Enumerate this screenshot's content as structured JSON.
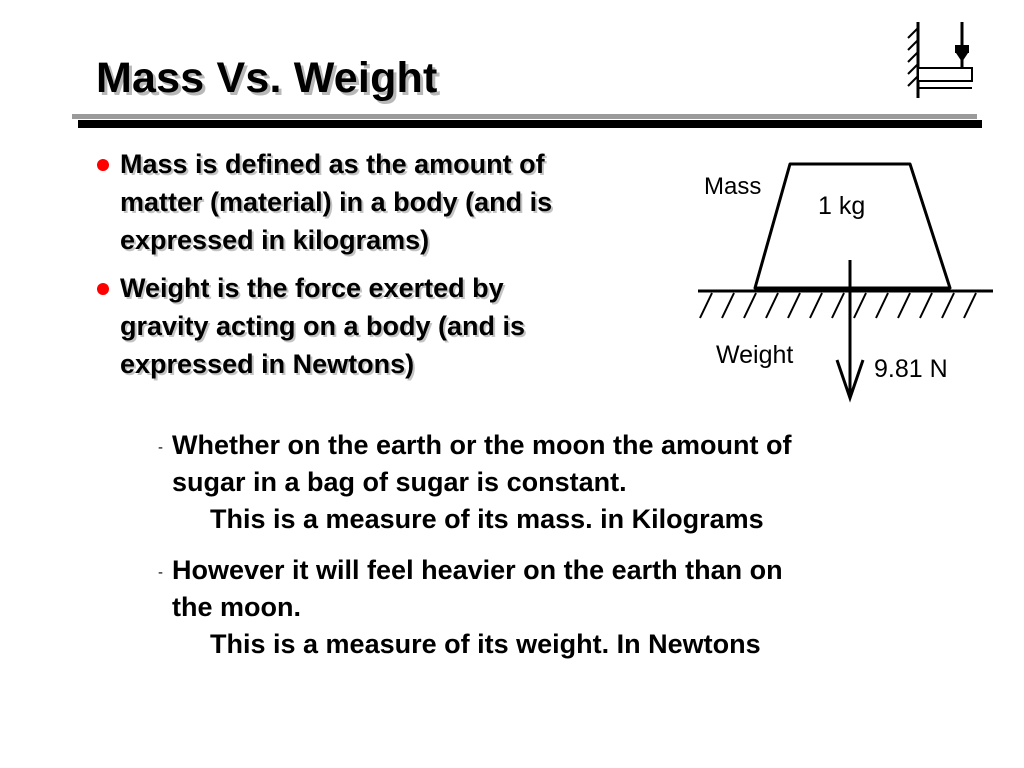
{
  "slide": {
    "title": "Mass Vs. Weight"
  },
  "bullets": [
    {
      "lines": [
        "Mass is defined as the amount of",
        "matter (material) in a body (and is",
        "expressed in kilograms)"
      ]
    },
    {
      "lines": [
        "Weight is the force exerted by",
        "gravity acting on a body (and is",
        "expressed in Newtons)"
      ]
    }
  ],
  "diagram": {
    "mass_label": "Mass",
    "mass_value": "1 kg",
    "weight_label": "Weight",
    "weight_value": "9.81 N"
  },
  "sub_points": [
    {
      "dash": "-",
      "line1": "Whether on the earth or the moon the amount of",
      "line2": "sugar in a bag of sugar is constant.",
      "note": "This is a measure of its mass. in Kilograms"
    },
    {
      "dash": "-",
      "line1": "However it will feel heavier on the earth than on",
      "line2": "the moon.",
      "note": "This is a measure of its weight. In Newtons"
    }
  ],
  "colors": {
    "bullet": "#ff0000",
    "title_shadow": "#b8b8b8",
    "rule": "#000000"
  },
  "icons": {
    "logo": "ground-and-spring-logo-icon",
    "bullet": "red-dot-bullet-icon",
    "weight_arrow": "down-arrow-icon"
  }
}
